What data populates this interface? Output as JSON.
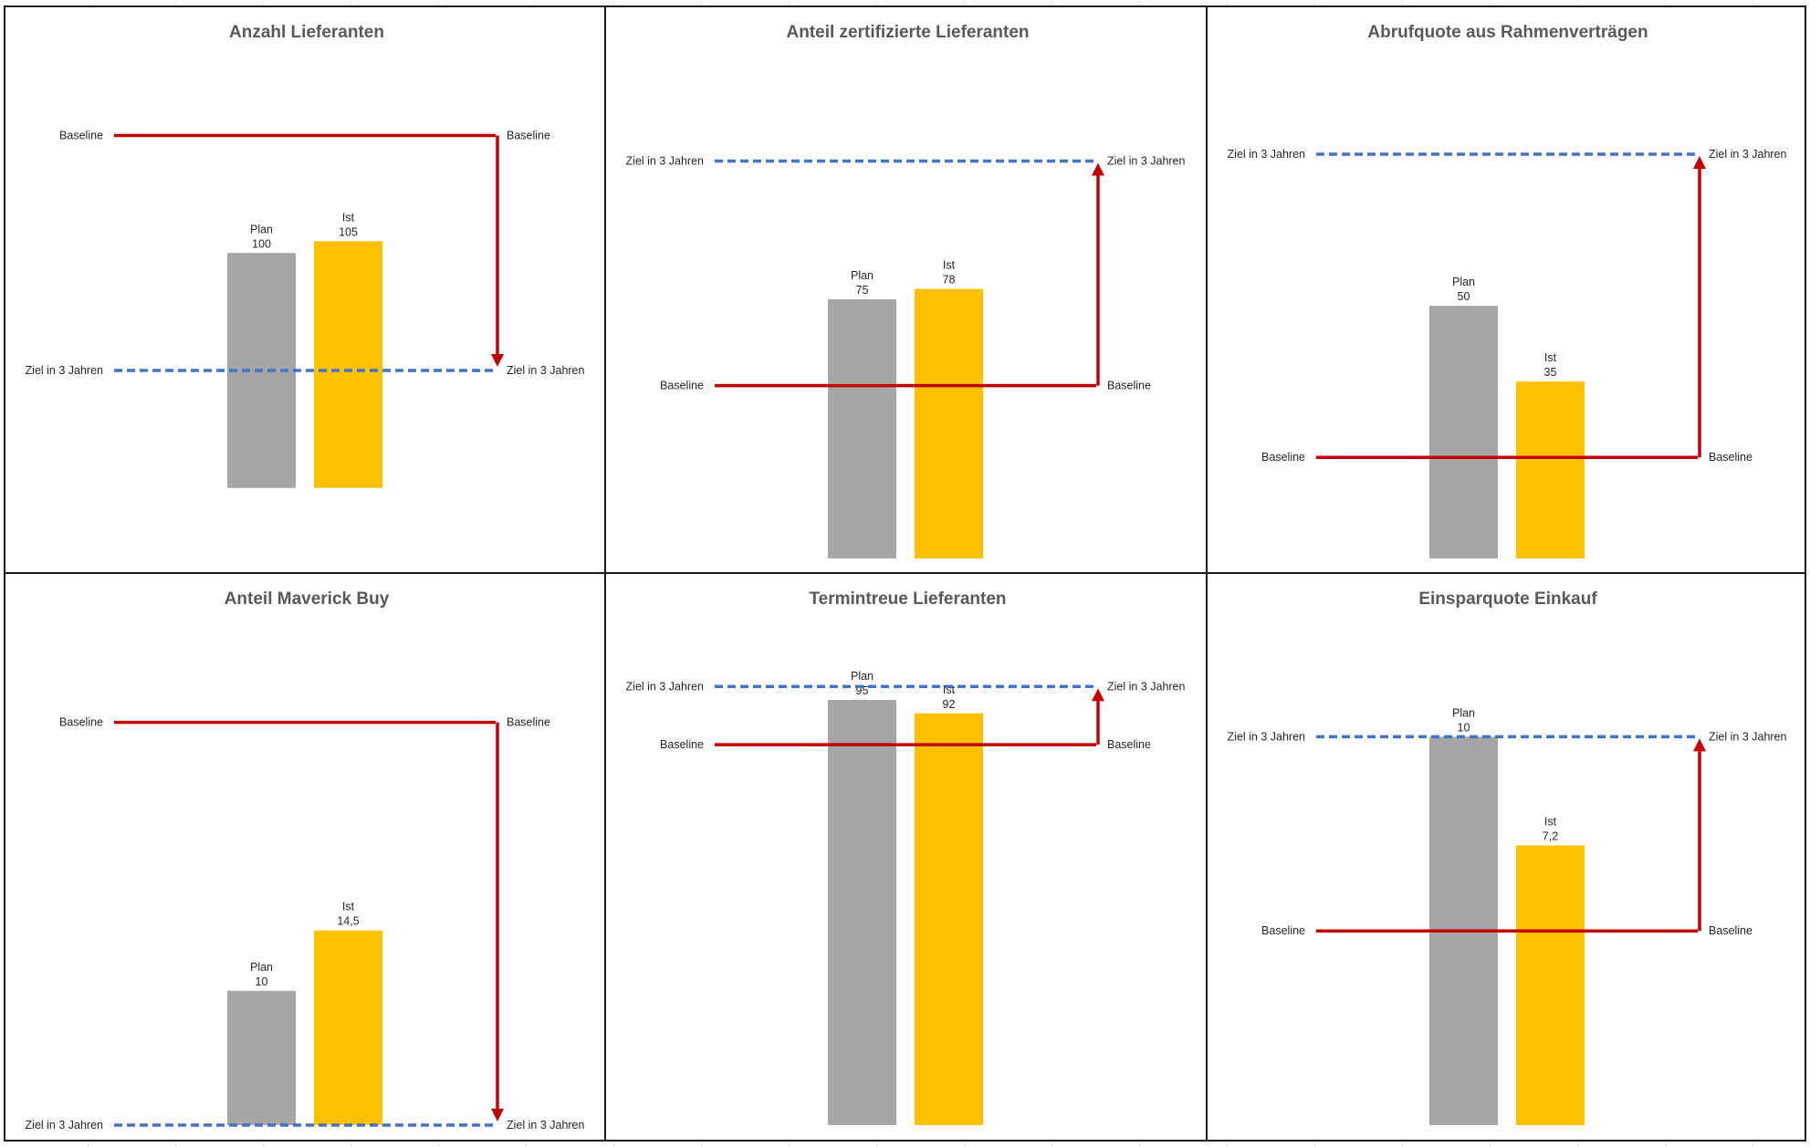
{
  "colors": {
    "plan": "#A6A6A6",
    "ist": "#FFC000",
    "baseline": "#C00000",
    "target": "#4472C4"
  },
  "chart_data": [
    {
      "type": "bar",
      "title": "Anzahl Lieferanten",
      "categories": [
        "Plan",
        "Ist"
      ],
      "values": [
        100,
        105
      ],
      "value_labels": [
        "100",
        "105"
      ],
      "baseline": 150,
      "target": 50,
      "baseline_label": "Baseline",
      "target_label": "Ziel in 3 Jahren",
      "ylim": [
        -30,
        170
      ]
    },
    {
      "type": "bar",
      "title": "Anteil zertifizierte Lieferanten",
      "categories": [
        "Plan",
        "Ist"
      ],
      "values": [
        75,
        78
      ],
      "value_labels": [
        "75",
        "78"
      ],
      "baseline": 50,
      "target": 115,
      "baseline_label": "Baseline",
      "target_label": "Ziel in 3 Jahren",
      "ylim": [
        0,
        136
      ]
    },
    {
      "type": "bar",
      "title": "Abrufquote aus Rahmenverträgen",
      "categories": [
        "Plan",
        "Ist"
      ],
      "values": [
        50,
        35
      ],
      "value_labels": [
        "50",
        "35"
      ],
      "baseline": 20,
      "target": 80,
      "baseline_label": "Baseline",
      "target_label": "Ziel in 3 Jahren",
      "ylim": [
        0,
        93
      ]
    },
    {
      "type": "bar",
      "title": "Anteil Maverick Buy",
      "categories": [
        "Plan",
        "Ist"
      ],
      "values": [
        10,
        14.5
      ],
      "value_labels": [
        "10",
        "14,5"
      ],
      "baseline": 30,
      "target": 0,
      "baseline_label": "Baseline",
      "target_label": "Ziel in 3 Jahren",
      "ylim": [
        0,
        35
      ]
    },
    {
      "type": "bar",
      "title": "Termintreue Lieferanten",
      "categories": [
        "Plan",
        "Ist"
      ],
      "values": [
        95,
        92
      ],
      "value_labels": [
        "95",
        "92"
      ],
      "baseline": 85,
      "target": 98,
      "baseline_label": "Baseline",
      "target_label": "Ziel in 3 Jahren",
      "ylim": [
        0,
        105
      ]
    },
    {
      "type": "bar",
      "title": "Einsparquote Einkauf",
      "categories": [
        "Plan",
        "Ist"
      ],
      "values": [
        10,
        7.2
      ],
      "value_labels": [
        "10",
        "7,2"
      ],
      "baseline": 5,
      "target": 10,
      "baseline_label": "Baseline",
      "target_label": "Ziel in 3 Jahren",
      "ylim": [
        0,
        12.1
      ]
    }
  ]
}
